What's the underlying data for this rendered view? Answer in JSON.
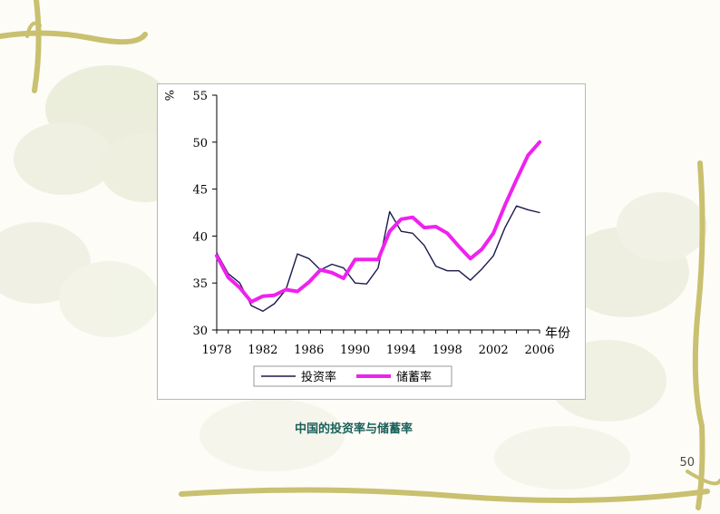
{
  "slide": {
    "caption": "中国的投资率与储蓄率",
    "page_number": "50"
  },
  "chart_data": {
    "type": "line",
    "y_unit": "%",
    "xlabel": "年份",
    "ylabel": "",
    "xlim": [
      1978,
      2006
    ],
    "ylim": [
      30,
      55
    ],
    "x_ticks": [
      "1978",
      "1982",
      "1986",
      "1990",
      "1994",
      "1998",
      "2002",
      "2006"
    ],
    "y_ticks": [
      "55",
      "50",
      "45",
      "40",
      "35",
      "30"
    ],
    "legend_position": "bottom",
    "grid": false,
    "x": [
      1978,
      1979,
      1980,
      1981,
      1982,
      1983,
      1984,
      1985,
      1986,
      1987,
      1988,
      1989,
      1990,
      1991,
      1992,
      1993,
      1994,
      1995,
      1996,
      1997,
      1998,
      1999,
      2000,
      2001,
      2002,
      2003,
      2004,
      2005,
      2006
    ],
    "series": [
      {
        "name": "投资率",
        "color": "#1a1a4a",
        "values": [
          38.2,
          36.0,
          35.0,
          32.6,
          32.0,
          32.8,
          34.3,
          38.1,
          37.6,
          36.4,
          37.0,
          36.6,
          35.0,
          34.9,
          36.6,
          42.6,
          40.5,
          40.3,
          39.0,
          36.8,
          36.3,
          36.3,
          35.3,
          36.5,
          37.9,
          40.9,
          43.2,
          42.8,
          42.5
        ]
      },
      {
        "name": "储蓄率",
        "color": "#ee22ee",
        "values": [
          37.9,
          35.6,
          34.5,
          33.0,
          33.6,
          33.7,
          34.3,
          34.1,
          35.1,
          36.4,
          36.1,
          35.5,
          37.5,
          37.5,
          37.5,
          40.5,
          41.8,
          42.0,
          40.9,
          41.0,
          40.3,
          38.9,
          37.6,
          38.6,
          40.3,
          43.3,
          46.0,
          48.6,
          50.0
        ]
      }
    ]
  }
}
